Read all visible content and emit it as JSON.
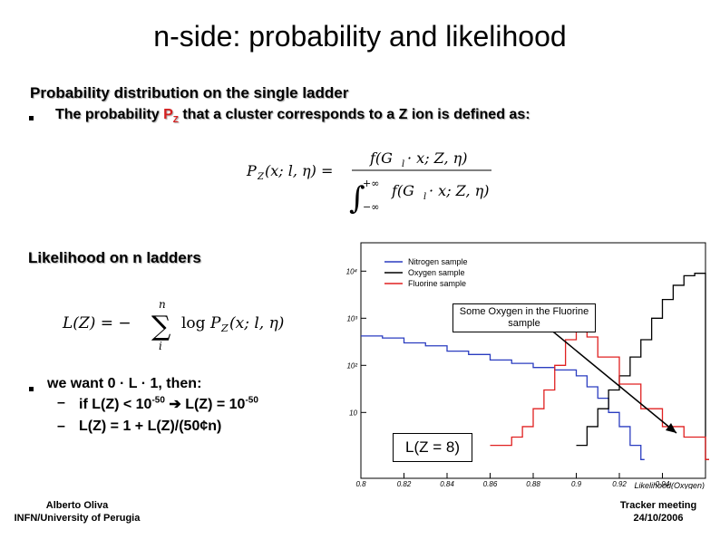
{
  "slide": {
    "title": "n-side: probability and likelihood",
    "section1_heading": "Probability distribution on the single ladder",
    "bullet1": {
      "prefix": "The probability ",
      "symbol": "P",
      "subscript": "Z",
      "suffix": " that a cluster corresponds to a Z ion is defined as:"
    },
    "section2_heading": "Likelihood on n ladders",
    "bullet2": "we want 0 · L · 1, then:",
    "sub_items": [
      {
        "dash": "–",
        "a": "if L(Z) < 10",
        "a_sup": "-50",
        "arrow": " ➔ L(Z) = 10",
        "b_sup": "-50"
      },
      {
        "dash": "–",
        "text": "L(Z) = 1 + L(Z)/(50¢n)"
      }
    ],
    "formula1": {
      "lhs": "P",
      "lhs_sub": "Z",
      "lhs_args": "(x; l, η) =",
      "numerator": "f(G",
      "num_sub": "l",
      "num_rest": " · x; Z, η)",
      "int_upper": "+∞",
      "int_lower": "−∞",
      "denominator": "f(G",
      "den_sub": "l",
      "den_rest": " · x; Z, η)"
    },
    "formula2": {
      "lhs": "L(Z) = −",
      "sum_top": "n",
      "sum_bottom": "i",
      "func": "log",
      "rhs": "P",
      "rhs_sub": "Z",
      "rhs_args": "(x; l, η)"
    },
    "author": [
      "Alberto Oliva",
      "INFN/University of Perugia"
    ],
    "meeting": [
      "Tracker meeting",
      "24/10/2006"
    ]
  },
  "chart_data": {
    "type": "line",
    "xlabel": "Likelihood(Oxygen)",
    "ylabel": "",
    "xlim": [
      0.8,
      0.96
    ],
    "x_ticks": [
      "0.8",
      "0.82",
      "0.84",
      "0.86",
      "0.88",
      "0.9",
      "0.92",
      "0.94"
    ],
    "y_log": true,
    "y_ticks": [
      "10",
      "10²",
      "10³",
      "10⁴"
    ],
    "legend_position": "top-left",
    "series": [
      {
        "name": "Nitrogen sample",
        "color": "#2a3cc0",
        "x": [
          0.8,
          0.81,
          0.82,
          0.83,
          0.84,
          0.85,
          0.86,
          0.87,
          0.88,
          0.89,
          0.9,
          0.905,
          0.91,
          0.915,
          0.92,
          0.925,
          0.93
        ],
        "y": [
          420,
          380,
          300,
          260,
          200,
          170,
          130,
          110,
          90,
          80,
          60,
          35,
          20,
          10,
          5,
          2,
          1
        ]
      },
      {
        "name": "Oxygen sample",
        "color": "#000000",
        "x": [
          0.9,
          0.905,
          0.91,
          0.915,
          0.92,
          0.925,
          0.93,
          0.935,
          0.94,
          0.945,
          0.95,
          0.955,
          0.96
        ],
        "y": [
          2,
          5,
          12,
          30,
          60,
          150,
          350,
          1000,
          2500,
          5000,
          8000,
          9000,
          1
        ]
      },
      {
        "name": "Fluorine sample",
        "color": "#e02020",
        "x": [
          0.86,
          0.87,
          0.875,
          0.88,
          0.885,
          0.89,
          0.895,
          0.9,
          0.905,
          0.91,
          0.92,
          0.93,
          0.94,
          0.95,
          0.96
        ],
        "y": [
          2,
          3,
          5,
          12,
          30,
          100,
          350,
          600,
          400,
          150,
          40,
          12,
          5,
          3,
          1
        ]
      }
    ],
    "annotations": [
      "Some Oxygen in the Fluorine sample",
      "L(Z = 8)"
    ]
  }
}
